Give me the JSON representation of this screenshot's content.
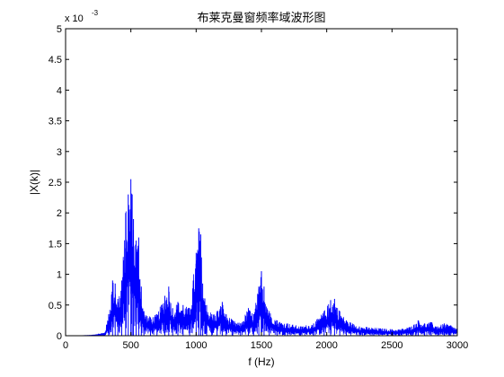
{
  "chart_data": {
    "type": "line",
    "title": "布莱克曼窗频率域波形图",
    "xlabel": "f (Hz)",
    "ylabel": "|X(k)|",
    "exponent_label": "x 10",
    "exponent_power": "-3",
    "xlim": [
      0,
      3000
    ],
    "ylim": [
      0,
      5
    ],
    "xticks": [
      0,
      500,
      1000,
      1500,
      2000,
      2500,
      3000
    ],
    "xtick_labels": [
      "0",
      "500",
      "1000",
      "1500",
      "2000",
      "2500",
      "3000"
    ],
    "yticks": [
      0,
      0.5,
      1,
      1.5,
      2,
      2.5,
      3,
      3.5,
      4,
      4.5,
      5
    ],
    "ytick_labels": [
      "0",
      "0.5",
      "1",
      "1.5",
      "2",
      "2.5",
      "3",
      "3.5",
      "4",
      "4.5",
      "5"
    ],
    "grid": false,
    "line_color": "#0000ff",
    "series": [
      {
        "x": [
          0,
          100,
          200,
          300,
          330,
          360,
          380,
          400,
          430,
          460,
          480,
          500,
          510,
          520,
          540,
          560,
          580,
          600,
          650,
          700,
          760,
          790,
          820,
          860,
          900,
          950,
          1000,
          1020,
          1035,
          1050,
          1080,
          1120,
          1160,
          1200,
          1230,
          1280,
          1340,
          1400,
          1440,
          1480,
          1500,
          1520,
          1560,
          1620,
          1700,
          1800,
          1900,
          1980,
          2030,
          2060,
          2100,
          2150,
          2250,
          2400,
          2550,
          2650,
          2700,
          2750,
          2800,
          2850,
          2900,
          2950,
          3000
        ],
        "values": [
          0.0,
          0.0,
          0.01,
          0.05,
          0.35,
          0.9,
          0.85,
          0.6,
          0.9,
          2.0,
          2.3,
          2.55,
          2.3,
          1.9,
          1.55,
          1.6,
          0.8,
          0.4,
          0.3,
          0.35,
          0.65,
          0.8,
          0.45,
          0.55,
          0.5,
          0.45,
          1.35,
          1.75,
          1.65,
          0.85,
          0.5,
          0.35,
          0.4,
          0.55,
          0.35,
          0.25,
          0.2,
          0.45,
          0.35,
          0.8,
          1.05,
          0.8,
          0.4,
          0.25,
          0.2,
          0.15,
          0.2,
          0.4,
          0.58,
          0.6,
          0.4,
          0.25,
          0.15,
          0.12,
          0.1,
          0.15,
          0.25,
          0.2,
          0.22,
          0.15,
          0.2,
          0.17,
          0.12
        ]
      }
    ]
  }
}
